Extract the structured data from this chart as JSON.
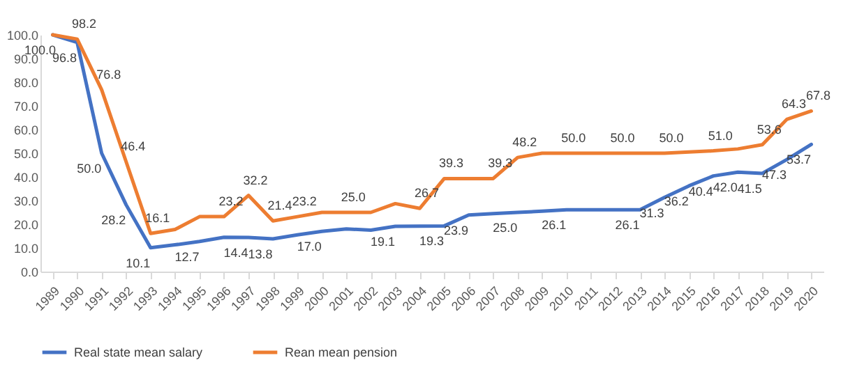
{
  "chart_data": {
    "type": "line",
    "categories": [
      "1989",
      "1990",
      "1991",
      "1992",
      "1993",
      "1994",
      "1995",
      "1996",
      "1997",
      "1998",
      "1999",
      "2000",
      "2001",
      "2002",
      "2003",
      "2004",
      "2005",
      "2006",
      "2007",
      "2008",
      "2009",
      "2010",
      "2011",
      "2012",
      "2013",
      "2014",
      "2015",
      "2016",
      "2017",
      "2018",
      "2019",
      "2020"
    ],
    "series": [
      {
        "name": "Real state mean salary",
        "color": "#4472c4",
        "values": [
          100.0,
          96.8,
          50.0,
          28.2,
          10.1,
          11.3,
          12.7,
          14.5,
          14.4,
          13.8,
          15.5,
          17.0,
          18.0,
          17.5,
          19.1,
          19.2,
          19.3,
          23.9,
          24.5,
          25.0,
          25.5,
          26.1,
          26.1,
          26.1,
          26.1,
          31.3,
          36.2,
          40.4,
          42.0,
          41.5,
          47.3,
          53.7
        ],
        "value_labels": [
          "100.0",
          "96.8",
          "50.0",
          "28.2",
          "10.1",
          null,
          "12.7",
          null,
          "14.4",
          "13.8",
          null,
          "17.0",
          null,
          null,
          "19.1",
          null,
          "19.3",
          "23.9",
          null,
          "25.0",
          null,
          "26.1",
          null,
          null,
          "26.1",
          "31.3",
          "36.2",
          "40.4",
          "42.0",
          "41.5",
          "47.3",
          "53.7"
        ]
      },
      {
        "name": "Rean mean pension",
        "color": "#ed7d31",
        "values": [
          100.0,
          98.2,
          76.8,
          46.4,
          16.1,
          17.8,
          23.2,
          23.2,
          32.2,
          21.4,
          23.2,
          25.0,
          25.0,
          25.0,
          28.7,
          26.7,
          39.3,
          39.3,
          39.3,
          48.2,
          50.0,
          50.0,
          50.0,
          50.0,
          50.0,
          50.0,
          50.5,
          51.0,
          51.8,
          53.6,
          64.3,
          67.8
        ],
        "value_labels": [
          null,
          "98.2",
          "76.8",
          "46.4",
          "16.1",
          null,
          null,
          "23.2",
          "32.2",
          "21.4",
          "23.2",
          null,
          "25.0",
          null,
          null,
          "26.7",
          "39.3",
          null,
          "39.3",
          "48.2",
          null,
          "50.0",
          null,
          "50.0",
          null,
          "50.0",
          null,
          "51.0",
          null,
          "53.6",
          "64.3",
          "67.8"
        ]
      }
    ],
    "ylim": [
      0,
      100
    ],
    "yticks": [
      {
        "value": 0,
        "label": "0.0"
      },
      {
        "value": 10,
        "label": "10.0"
      },
      {
        "value": 20,
        "label": "20.0"
      },
      {
        "value": 30,
        "label": "30.0"
      },
      {
        "value": 40,
        "label": "40.0"
      },
      {
        "value": 50,
        "label": "50.0"
      },
      {
        "value": 60,
        "label": "60.0"
      },
      {
        "value": 70,
        "label": "70.0"
      },
      {
        "value": 80,
        "label": "80.0"
      },
      {
        "value": 90,
        "label": "90.0"
      },
      {
        "value": 100,
        "label": "100.0"
      }
    ],
    "legend": "bottom",
    "marker": "none",
    "line_style": "solid"
  }
}
